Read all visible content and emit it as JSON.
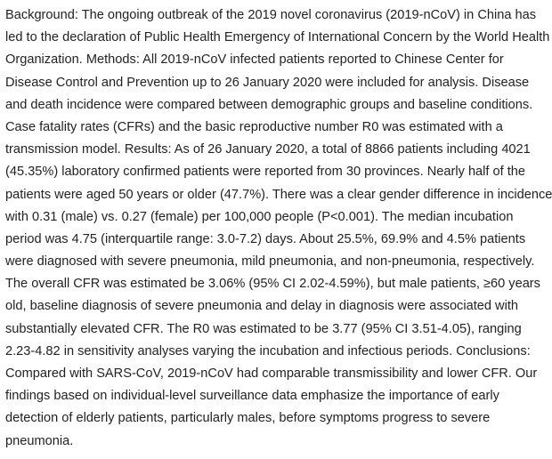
{
  "abstract": {
    "lines": [
      "Background: The ongoing outbreak of the 2019 novel coronavirus (2019-nCoV) in China has",
      "led to the declaration of Public Health Emergency of International Concern by the World Health",
      "Organization. Methods: All 2019-nCoV infected patients reported to Chinese Center for",
      "Disease Control and Prevention up to 26 January 2020 were included for analysis. Disease",
      "and death incidence were compared between demographic groups and baseline conditions.",
      "Case fatality rates (CFRs) and the basic reproductive number R0 was estimated with a",
      "transmission model. Results: As of 26 January 2020, a total of 8866 patients including 4021",
      "(45.35%) laboratory confirmed patients were reported from 30 provinces. Nearly half of the",
      "patients were aged 50 years or older (47.7%). There was a clear gender difference in incidence",
      "with 0.31 (male) vs. 0.27 (female) per 100,000 people (P<0.001). The median incubation",
      "period was 4.75 (interquartile range: 3.0-7.2) days. About 25.5%, 69.9% and 4.5% patients",
      "were diagnosed with severe pneumonia, mild pneumonia, and non-pneumonia, respectively.",
      "The overall CFR was estimated be 3.06% (95% CI 2.02-4.59%), but male patients, ≥60 years",
      "old, baseline diagnosis of severe pneumonia and delay in diagnosis were associated with",
      "substantially elevated CFR. The R0 was estimated to be 3.77 (95% CI 3.51-4.05), ranging",
      "2.23-4.82 in sensitivity analyses varying the incubation and infectious periods. Conclusions:",
      "Compared with SARS-CoV, 2019-nCoV had comparable transmissibility and lower CFR. Our",
      "findings based on individual-level surveillance data emphasize the importance of early",
      "detection of elderly patients, particularly males, before symptoms progress to severe",
      "pneumonia."
    ]
  }
}
